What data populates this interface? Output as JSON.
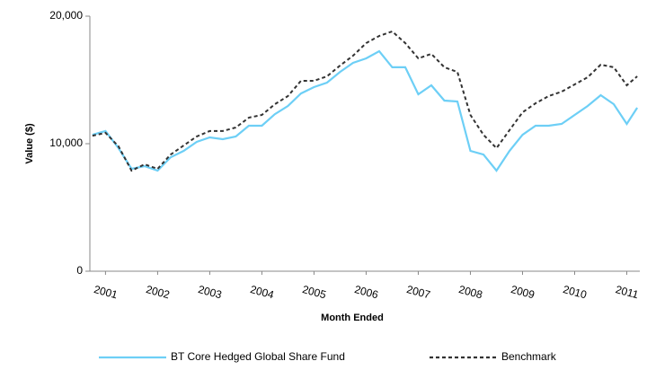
{
  "chart_data": {
    "type": "line",
    "x_label": "Month Ended",
    "y_label": "Value ($)",
    "x": [
      2000.75,
      2001.0,
      2001.25,
      2001.5,
      2001.75,
      2002.0,
      2002.25,
      2002.5,
      2002.75,
      2003.0,
      2003.25,
      2003.5,
      2003.75,
      2004.0,
      2004.25,
      2004.5,
      2004.75,
      2005.0,
      2005.25,
      2005.5,
      2005.75,
      2006.0,
      2006.25,
      2006.5,
      2006.75,
      2007.0,
      2007.25,
      2007.5,
      2007.75,
      2008.0,
      2008.25,
      2008.5,
      2008.75,
      2009.0,
      2009.25,
      2009.5,
      2009.75,
      2010.0,
      2010.25,
      2010.5,
      2010.75,
      2011.0,
      2011.2
    ],
    "series": [
      {
        "name": "BT Core Hedged Global Share Fund",
        "color": "#6dcff6",
        "dash": false,
        "values": [
          10700,
          10990,
          9650,
          8030,
          8240,
          7890,
          8940,
          9440,
          10140,
          10490,
          10350,
          10560,
          11410,
          11410,
          12320,
          12960,
          13940,
          14440,
          14790,
          15630,
          16340,
          16690,
          17250,
          15990,
          15990,
          13870,
          14580,
          13380,
          13310,
          9440,
          9150,
          7890,
          9440,
          10700,
          11410,
          11410,
          11550,
          12250,
          12960,
          13800,
          13100,
          11550,
          12820
        ]
      },
      {
        "name": "Benchmark",
        "color": "#333333",
        "dash": true,
        "values": [
          10630,
          10850,
          9790,
          7890,
          8380,
          8030,
          9150,
          9860,
          10560,
          10990,
          10990,
          11270,
          12040,
          12250,
          13100,
          13730,
          14930,
          14930,
          15280,
          16130,
          16900,
          17890,
          18450,
          18800,
          17890,
          16690,
          17040,
          15990,
          15630,
          12250,
          10700,
          9650,
          11060,
          12460,
          13170,
          13730,
          14080,
          14650,
          15210,
          16200,
          15990,
          14580,
          15280
        ]
      }
    ],
    "xlim": [
      2000.7,
      2011.25
    ],
    "xticks": [
      2001,
      2002,
      2003,
      2004,
      2005,
      2006,
      2007,
      2008,
      2009,
      2010,
      2011
    ],
    "ylim": [
      0,
      20000
    ],
    "yticks": [
      0,
      {
        "value": 10000,
        "label": "10,000"
      },
      {
        "value": 20000,
        "label": "20,000"
      }
    ],
    "legend": "bottom"
  }
}
